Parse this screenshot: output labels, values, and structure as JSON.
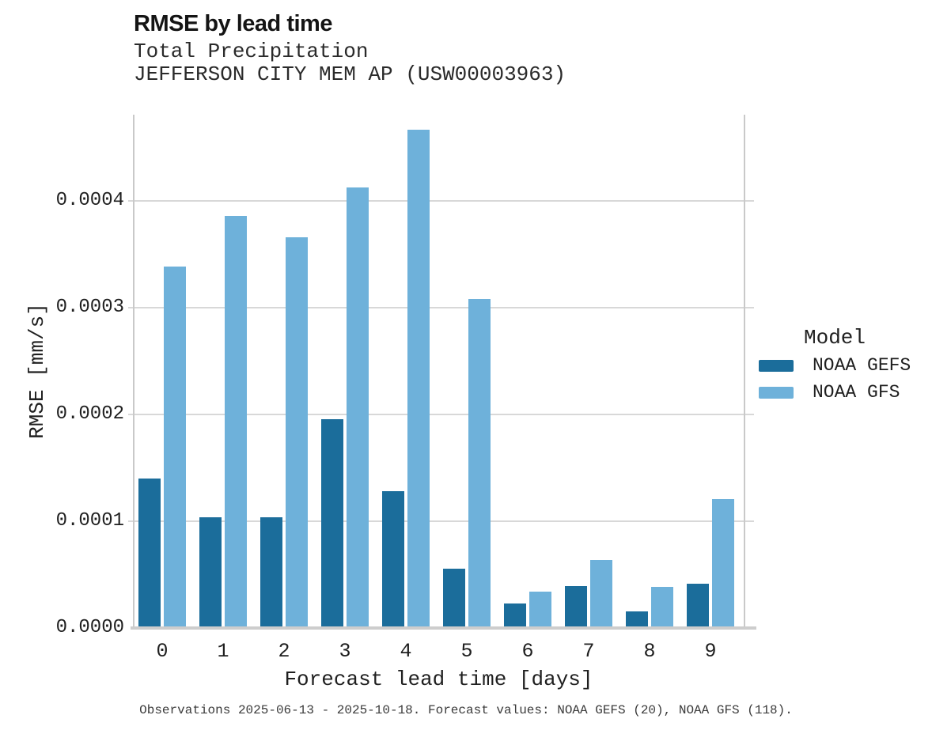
{
  "header": {
    "title": "RMSE by lead time",
    "subtitle": "Total Precipitation",
    "station": "JEFFERSON CITY MEM AP (USW00003963)"
  },
  "axes": {
    "y_label": "RMSE [mm/s]",
    "x_label": "Forecast lead time [days]"
  },
  "legend": {
    "title": "Model"
  },
  "caption": "Observations 2025-06-13 - 2025-10-18. Forecast values: NOAA GEFS (20), NOAA GFS (118).",
  "colors": {
    "gefs_bar": "#1b6d9b",
    "gfs_bar": "#6eb1da",
    "gridline": "#d8d8d8",
    "spine": "#c9c9c9"
  },
  "chart_data": {
    "type": "bar",
    "title": "RMSE by lead time",
    "subtitle": "Total Precipitation",
    "station": "JEFFERSON CITY MEM AP (USW00003963)",
    "xlabel": "Forecast lead time [days]",
    "ylabel": "RMSE [mm/s]",
    "categories": [
      "0",
      "1",
      "2",
      "3",
      "4",
      "5",
      "6",
      "7",
      "8",
      "9"
    ],
    "series": [
      {
        "name": "NOAA GEFS",
        "color": "#1b6d9b",
        "values": [
          0.00014,
          0.000104,
          0.000104,
          0.000196,
          0.000128,
          5.56e-05,
          2.3e-05,
          3.93e-05,
          1.56e-05,
          4.15e-05
        ]
      },
      {
        "name": "NOAA GFS",
        "color": "#6eb1da",
        "values": [
          0.000339,
          0.000386,
          0.000366,
          0.000413,
          0.000467,
          0.000308,
          3.41e-05,
          6.37e-05,
          3.85e-05,
          0.000121
        ]
      }
    ],
    "ylim": [
      0,
      0.000481
    ],
    "yticks": [
      {
        "value": 0.0,
        "label": "0.0000"
      },
      {
        "value": 0.0001,
        "label": "0.0001"
      },
      {
        "value": 0.0002,
        "label": "0.0002"
      },
      {
        "value": 0.0003,
        "label": "0.0003"
      },
      {
        "value": 0.0004,
        "label": "0.0004"
      }
    ],
    "grid": "horizontal",
    "legend_position": "right"
  }
}
